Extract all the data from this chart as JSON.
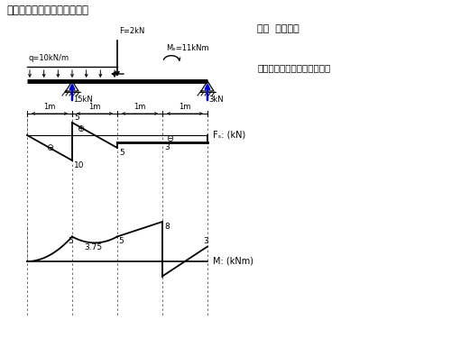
{
  "title": "一、作梁的剪力图和弯矩图。",
  "right_text1": "解：  求支反力",
  "right_text2": "用控制点法作剪力图和弯矩图",
  "q_label": "q=10kN/m",
  "F_label": "F=2kN",
  "Me_label": "Mₑ=11kNm",
  "react1_label": "15kN",
  "react2_label": "3kN",
  "Fs_label": "Fₛ: (kN)",
  "M_label": "M: (kNm)",
  "dim_labels": [
    "1m",
    "1m",
    "1m",
    "1m"
  ],
  "bg_color": "#ffffff",
  "line_color": "#000000",
  "blue_color": "#0000cd"
}
